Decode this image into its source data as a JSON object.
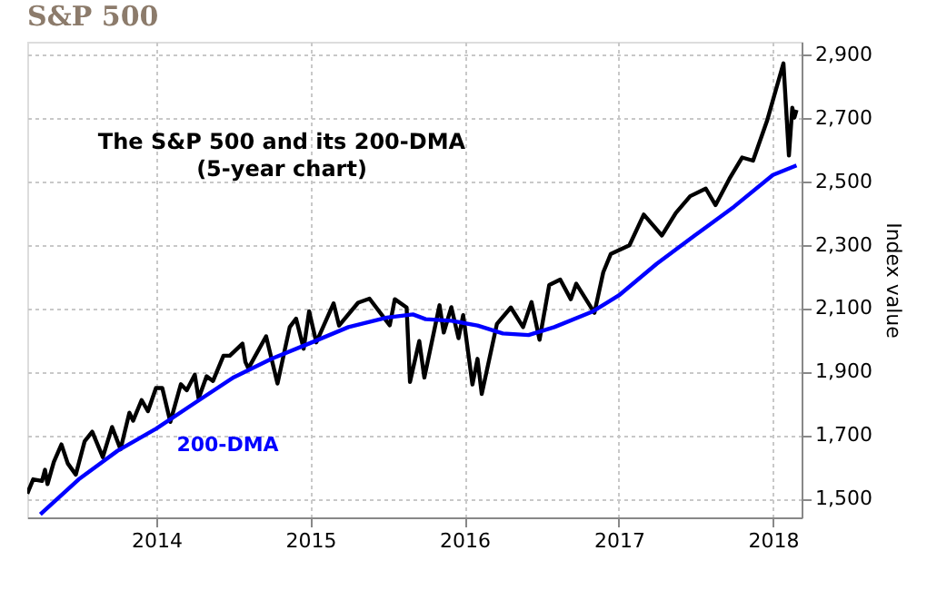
{
  "chart_data": {
    "type": "line",
    "title": "S&P 500",
    "ylabel": "Index value",
    "annotations": [
      "The S&P 500 and its 200-DMA",
      "(5-year chart)"
    ],
    "xlim": [
      "2013-03-01",
      "2018-03-10"
    ],
    "xticks": [
      {
        "value": "2014-01-01",
        "label": "2014"
      },
      {
        "value": "2015-01-01",
        "label": "2015"
      },
      {
        "value": "2016-01-01",
        "label": "2016"
      },
      {
        "value": "2017-01-01",
        "label": "2017"
      },
      {
        "value": "2018-01-01",
        "label": "2018"
      }
    ],
    "ylim": [
      1440,
      2940
    ],
    "yticks": [
      {
        "value": 1500,
        "label": "1,500"
      },
      {
        "value": 1700,
        "label": "1,700"
      },
      {
        "value": 1900,
        "label": "1,900"
      },
      {
        "value": 2100,
        "label": "2,100"
      },
      {
        "value": 2300,
        "label": "2,300"
      },
      {
        "value": 2500,
        "label": "2,500"
      },
      {
        "value": 2700,
        "label": "2,700"
      },
      {
        "value": 2900,
        "label": "2,900"
      }
    ],
    "grid": true,
    "series": [
      {
        "color": "#000000",
        "x": [
          "2013-03-01",
          "2013-03-15",
          "2013-04-05",
          "2013-04-12",
          "2013-04-18",
          "2013-05-03",
          "2013-05-21",
          "2013-06-05",
          "2013-06-24",
          "2013-07-15",
          "2013-08-02",
          "2013-08-27",
          "2013-09-18",
          "2013-10-08",
          "2013-10-29",
          "2013-11-07",
          "2013-11-27",
          "2013-12-12",
          "2013-12-31",
          "2014-01-15",
          "2014-02-03",
          "2014-02-28",
          "2014-03-14",
          "2014-04-02",
          "2014-04-11",
          "2014-04-30",
          "2014-05-15",
          "2014-06-09",
          "2014-06-24",
          "2014-07-24",
          "2014-07-31",
          "2014-08-07",
          "2014-09-18",
          "2014-10-15",
          "2014-11-13",
          "2014-11-28",
          "2014-12-16",
          "2014-12-29",
          "2015-01-15",
          "2015-02-25",
          "2015-03-10",
          "2015-04-24",
          "2015-05-21",
          "2015-07-08",
          "2015-07-20",
          "2015-08-17",
          "2015-08-25",
          "2015-09-16",
          "2015-09-28",
          "2015-11-03",
          "2015-11-13",
          "2015-12-01",
          "2015-12-18",
          "2015-12-29",
          "2016-01-20",
          "2016-02-01",
          "2016-02-11",
          "2016-03-18",
          "2016-04-20",
          "2016-05-19",
          "2016-06-08",
          "2016-06-27",
          "2016-07-20",
          "2016-08-15",
          "2016-09-09",
          "2016-09-22",
          "2016-11-04",
          "2016-11-25",
          "2016-12-13",
          "2017-01-26",
          "2017-03-01",
          "2017-04-13",
          "2017-05-16",
          "2017-06-19",
          "2017-07-26",
          "2017-08-18",
          "2017-09-20",
          "2017-10-20",
          "2017-11-15",
          "2017-12-18",
          "2018-01-26",
          "2018-02-08",
          "2018-02-16",
          "2018-02-21",
          "2018-02-26"
        ],
        "values": [
          1515,
          1560,
          1555,
          1590,
          1545,
          1615,
          1670,
          1610,
          1575,
          1680,
          1710,
          1630,
          1725,
          1655,
          1770,
          1745,
          1810,
          1775,
          1848,
          1848,
          1741,
          1860,
          1841,
          1890,
          1815,
          1885,
          1870,
          1950,
          1950,
          1988,
          1930,
          1910,
          2011,
          1862,
          2040,
          2067,
          1972,
          2090,
          1992,
          2115,
          2045,
          2117,
          2130,
          2046,
          2128,
          2102,
          1867,
          1996,
          1881,
          2109,
          2023,
          2103,
          2005,
          2078,
          1859,
          1940,
          1829,
          2050,
          2102,
          2040,
          2119,
          2000,
          2173,
          2190,
          2128,
          2177,
          2085,
          2213,
          2271,
          2298,
          2395,
          2329,
          2400,
          2453,
          2477,
          2425,
          2508,
          2575,
          2565,
          2690,
          2872,
          2581,
          2732,
          2701,
          2725
        ]
      },
      {
        "name": "200-DMA",
        "color": "#0000ff",
        "x": [
          "2013-04-01",
          "2013-07-01",
          "2013-10-01",
          "2014-01-01",
          "2014-04-01",
          "2014-07-01",
          "2014-10-01",
          "2015-01-01",
          "2015-04-01",
          "2015-07-01",
          "2015-09-01",
          "2015-10-01",
          "2015-12-01",
          "2016-02-01",
          "2016-04-01",
          "2016-06-01",
          "2016-08-01",
          "2016-11-01",
          "2017-01-01",
          "2017-04-01",
          "2017-07-01",
          "2017-10-01",
          "2018-01-01",
          "2018-02-26"
        ],
        "values": [
          1450,
          1560,
          1650,
          1720,
          1800,
          1880,
          1940,
          1990,
          2040,
          2070,
          2080,
          2065,
          2060,
          2045,
          2020,
          2015,
          2040,
          2090,
          2140,
          2240,
          2330,
          2420,
          2520,
          2550
        ]
      }
    ]
  }
}
